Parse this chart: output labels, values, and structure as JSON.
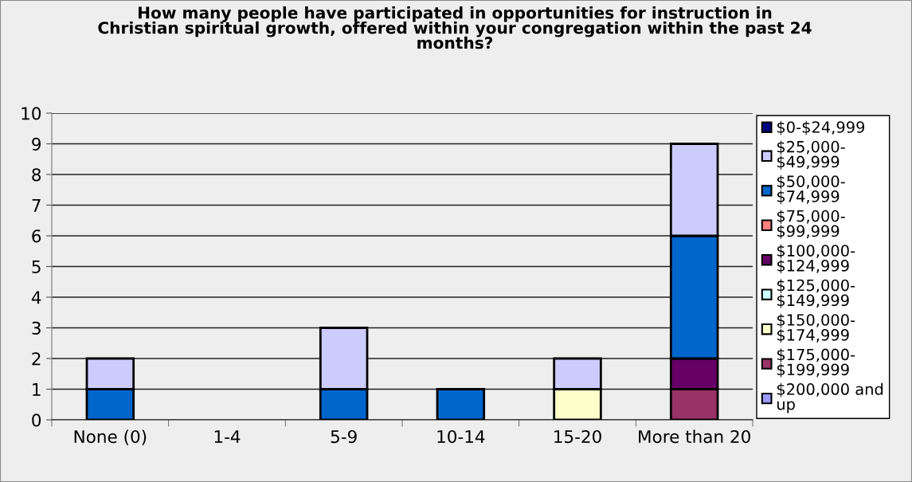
{
  "chart_data": {
    "type": "bar",
    "title": "How many people have participated in opportunities for instruction in\nChristian spiritual growth, offered within your congregation within the past 24\nmonths?",
    "categories": [
      "None (0)",
      "1-4",
      "5-9",
      "10-14",
      "15-20",
      "More than 20"
    ],
    "stacked": true,
    "series": [
      {
        "name": "$200,000 and\nup",
        "color": "#9999ff",
        "values": [
          null,
          null,
          null,
          null,
          null,
          null
        ]
      },
      {
        "name": "$175,000-\n$199,999",
        "color": "#993366",
        "values": [
          null,
          null,
          null,
          null,
          null,
          1
        ]
      },
      {
        "name": "$150,000-\n$174,999",
        "color": "#ffffcc",
        "values": [
          null,
          null,
          null,
          null,
          1,
          null
        ]
      },
      {
        "name": "$125,000-\n$149,999",
        "color": "#ccffff",
        "values": [
          null,
          null,
          null,
          null,
          null,
          null
        ]
      },
      {
        "name": "$100,000-\n$124,999",
        "color": "#660066",
        "values": [
          null,
          null,
          null,
          null,
          null,
          1
        ]
      },
      {
        "name": "$75,000-\n$99,999",
        "color": "#ff8080",
        "values": [
          null,
          null,
          null,
          null,
          null,
          null
        ]
      },
      {
        "name": "$50,000-\n$74,999",
        "color": "#0066cc",
        "values": [
          1,
          null,
          1,
          1,
          null,
          4
        ]
      },
      {
        "name": "$25,000-\n$49,999",
        "color": "#ccccff",
        "values": [
          1,
          null,
          2,
          null,
          1,
          3
        ]
      },
      {
        "name": "$0-$24,999",
        "color": "#000080",
        "values": [
          null,
          null,
          null,
          null,
          null,
          null
        ]
      }
    ],
    "ylim": [
      0,
      10
    ],
    "yticks": [
      0,
      1,
      2,
      3,
      4,
      5,
      6,
      7,
      8,
      9,
      10
    ],
    "grid": "y",
    "legend": "right"
  }
}
